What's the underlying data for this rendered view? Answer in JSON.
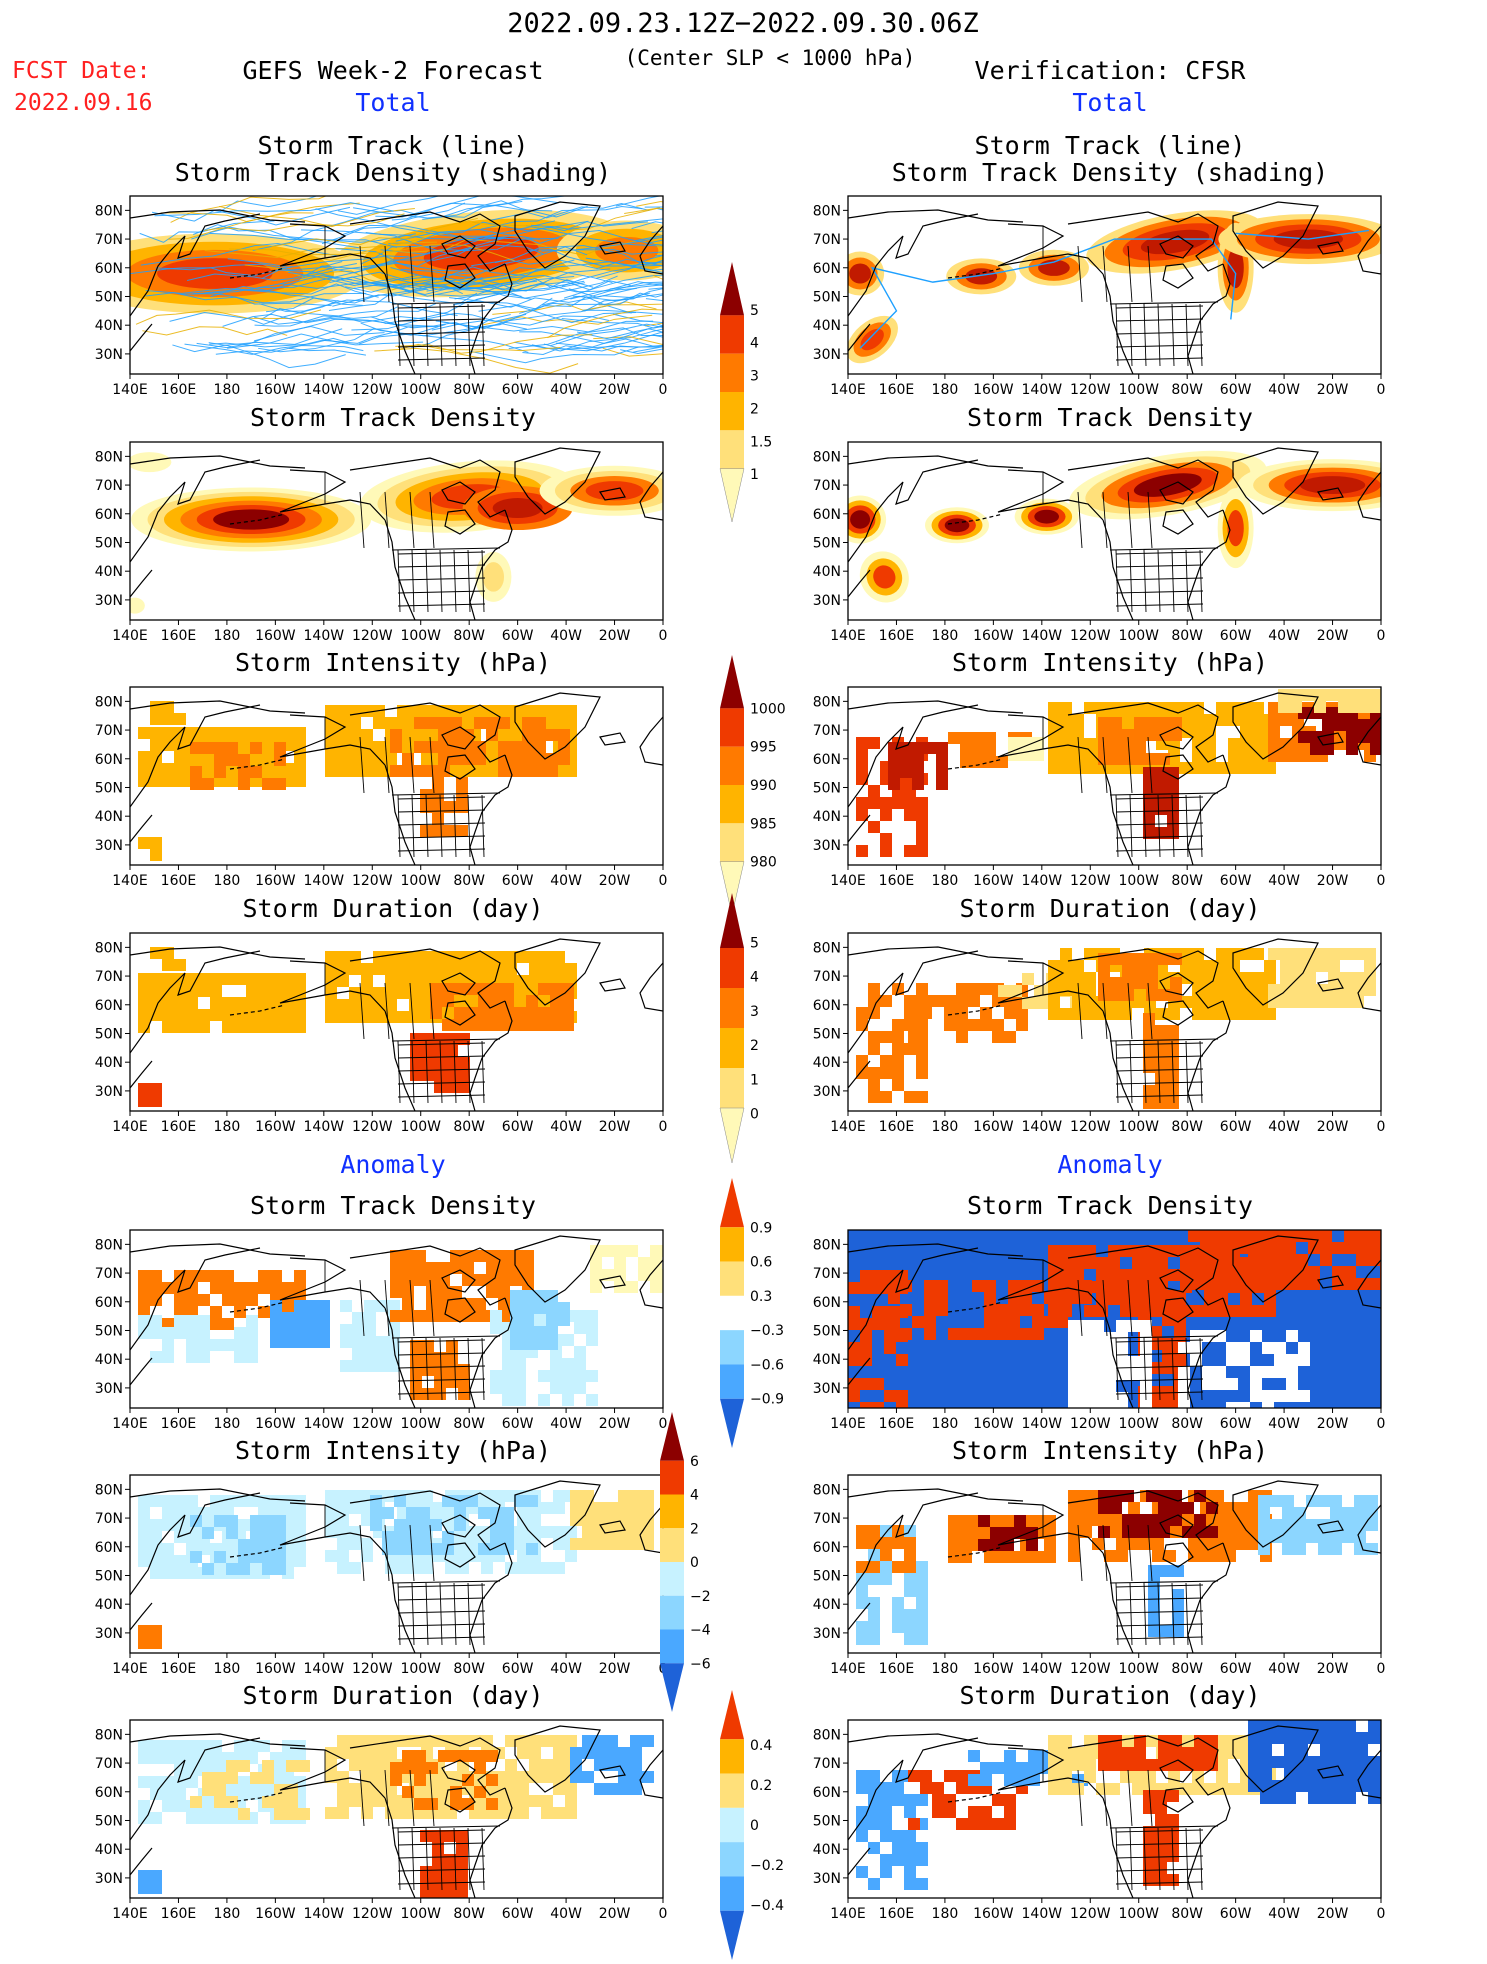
{
  "header": {
    "date_range": "2022.09.23.12Z−2022.09.30.06Z",
    "subtitle": "(Center SLP < 1000 hPa)",
    "fcst_label": "FCST Date:",
    "fcst_date": "2022.09.16",
    "left_title": "GEFS Week-2 Forecast",
    "right_title": "Verification: CFSR",
    "total_label": "Total",
    "anomaly_label": "Anomaly"
  },
  "axes": {
    "lon_labels": [
      "140E",
      "160E",
      "180",
      "160W",
      "140W",
      "120W",
      "100W",
      "80W",
      "60W",
      "40W",
      "20W",
      "0"
    ],
    "lat_labels": [
      "80N",
      "70N",
      "60N",
      "50N",
      "40N",
      "30N"
    ]
  },
  "panels": {
    "track": {
      "title1": "Storm Track (line)",
      "title2": "Storm Track Density (shading)"
    },
    "density": {
      "title": "Storm Track Density"
    },
    "intensity": {
      "title": "Storm Intensity (hPa)"
    },
    "duration": {
      "title": "Storm Duration (day)"
    }
  },
  "colorbars": {
    "density_total": {
      "labels": [
        "5",
        "4",
        "3",
        "2",
        "1.5",
        "1"
      ]
    },
    "intensity_total": {
      "labels": [
        "1000",
        "995",
        "990",
        "985",
        "980"
      ]
    },
    "duration_total": {
      "labels": [
        "5",
        "4",
        "3",
        "2",
        "1",
        "0"
      ]
    },
    "density_anom": {
      "labels": [
        "0.9",
        "0.6",
        "0.3",
        "−0.3",
        "−0.6",
        "−0.9"
      ]
    },
    "intensity_anom": {
      "labels": [
        "6",
        "4",
        "2",
        "0",
        "−2",
        "−4",
        "−6"
      ]
    },
    "duration_anom": {
      "labels": [
        "0.4",
        "0.2",
        "0",
        "−0.2",
        "−0.4"
      ]
    }
  },
  "colors": {
    "warm": [
      "#fff9b8",
      "#ffe07a",
      "#ffb400",
      "#ff7a00",
      "#ef3a00",
      "#c11a00",
      "#8c0000"
    ],
    "cool": [
      "#c7f2ff",
      "#8cd6ff",
      "#4aa8ff",
      "#1e62d8"
    ],
    "track_line": "#1ea0ff"
  }
}
